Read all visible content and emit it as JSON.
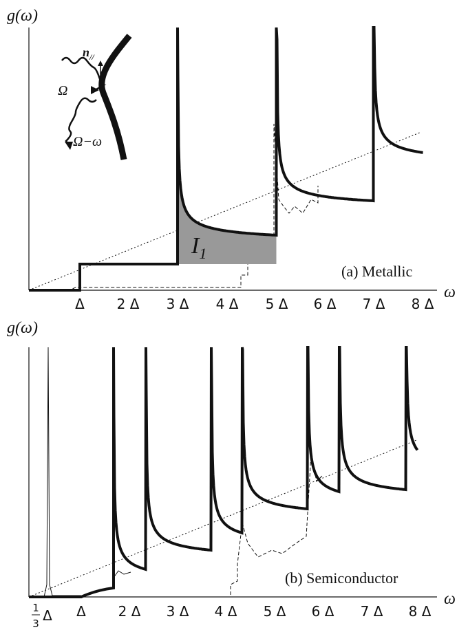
{
  "panels": [
    {
      "y_label": "g(ω)",
      "x_label": "ω",
      "caption": "(a) Metallic",
      "x_tick_labels": [
        "Δ",
        "2 Δ",
        "3 Δ",
        "4 Δ",
        "5 Δ",
        "6 Δ",
        "7 Δ",
        "8 Δ"
      ],
      "area_label": {
        "main": "I",
        "sub": "1"
      },
      "inset": {
        "normal": {
          "main": "n",
          "sub": "//"
        },
        "incoming": "Ω",
        "outgoing": "Ω−ω"
      }
    },
    {
      "y_label": "g(ω)",
      "x_label": "ω",
      "caption": "(b) Semiconductor",
      "first_tick": {
        "numerator": "1",
        "denominator": "3",
        "symbol": "Δ"
      },
      "x_tick_labels": [
        "Δ",
        "2 Δ",
        "3 Δ",
        "4 Δ",
        "5 Δ",
        "6 Δ",
        "7 Δ",
        "8 Δ"
      ]
    }
  ]
}
